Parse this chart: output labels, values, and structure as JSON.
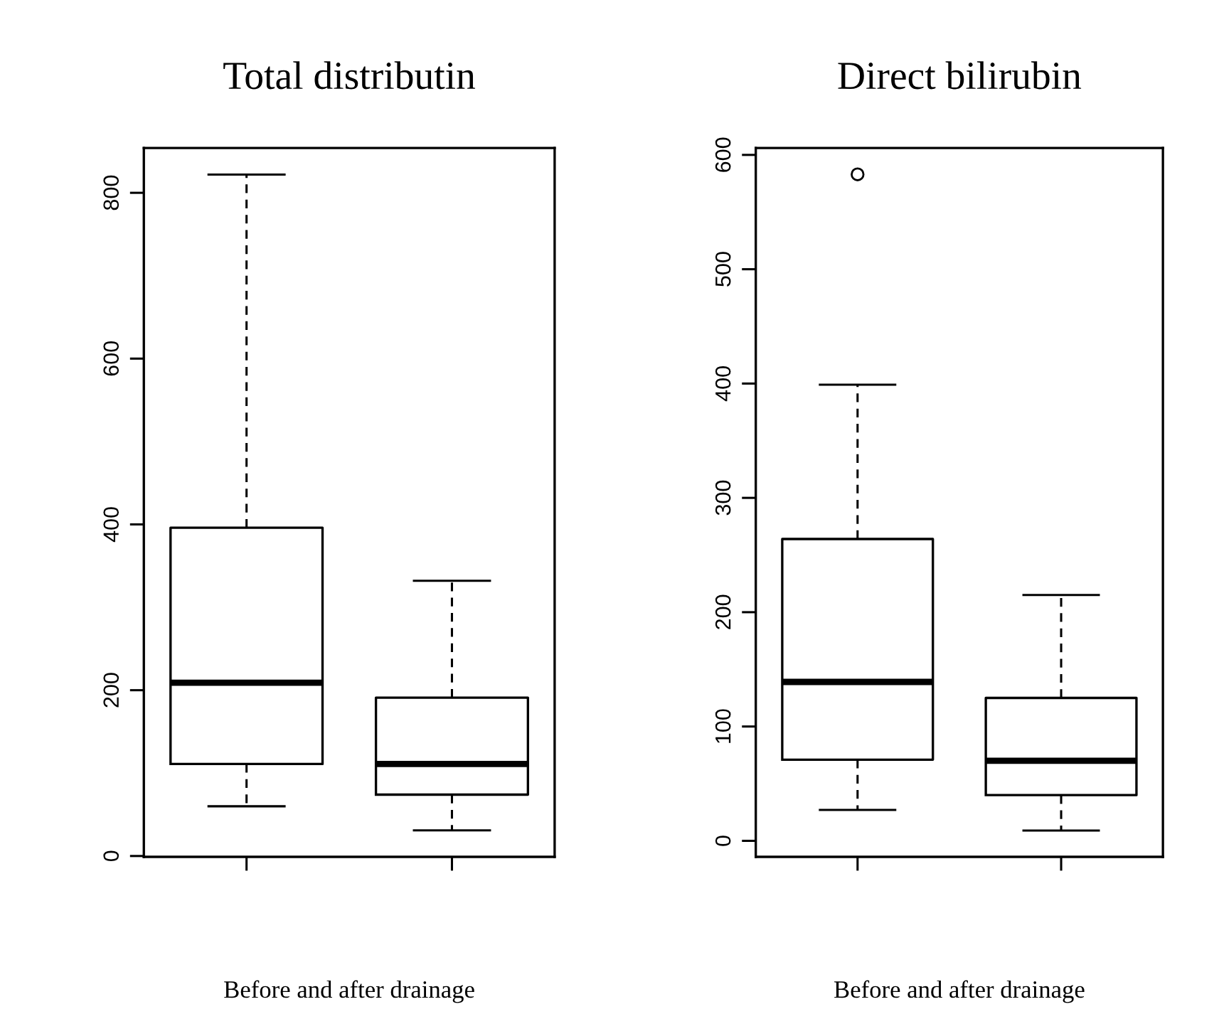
{
  "chart_data": [
    {
      "type": "box",
      "title": "Total distributin",
      "xlabel": "Before and after drainage",
      "categories": [
        null,
        null
      ],
      "ylim": [
        -1,
        854
      ],
      "yticks": [
        0,
        200,
        400,
        600,
        800
      ],
      "grid": false,
      "legend": false,
      "boxes": [
        {
          "low": 60,
          "q1": 111,
          "median": 209,
          "q3": 396,
          "high": 822
        },
        {
          "low": 31,
          "q1": 74,
          "median": 111,
          "q3": 191,
          "high": 332
        }
      ]
    },
    {
      "type": "box",
      "title": "Direct bilirubin",
      "xlabel": "Before and after drainage",
      "categories": [
        null,
        null
      ],
      "ylim": [
        -14,
        606
      ],
      "yticks": [
        0,
        100,
        200,
        300,
        400,
        500,
        600
      ],
      "grid": false,
      "legend": false,
      "boxes": [
        {
          "low": 27,
          "q1": 71,
          "median": 139,
          "q3": 264,
          "high": 399,
          "outliers": [
            583
          ]
        },
        {
          "low": 9,
          "q1": 40,
          "median": 70,
          "q3": 125,
          "high": 215
        }
      ]
    }
  ]
}
